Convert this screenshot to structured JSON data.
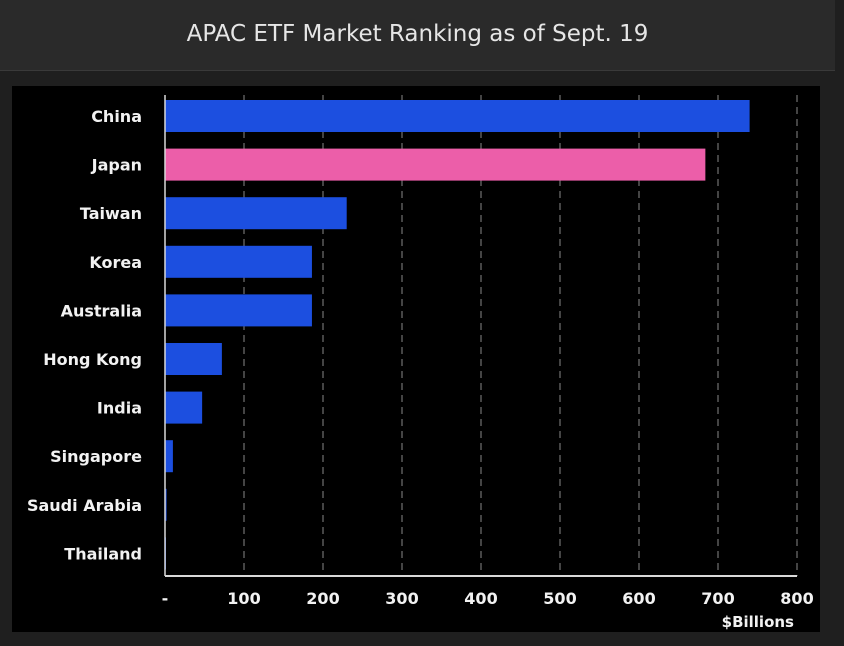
{
  "header": {
    "title": "APAC ETF Market Ranking as of Sept. 19"
  },
  "colors": {
    "default_bar": "#1c4fe0",
    "highlight_bar": "#ec5ea9",
    "gridline": "#5a5a5a",
    "background": "#000000"
  },
  "chart_data": {
    "type": "bar",
    "orientation": "horizontal",
    "title": "APAC ETF Market Ranking as of Sept. 19",
    "categories": [
      "China",
      "Japan",
      "Taiwan",
      "Korea",
      "Australia",
      "Hong Kong",
      "India",
      "Singapore",
      "Saudi Arabia",
      "Thailand"
    ],
    "values": [
      740,
      684,
      230,
      186,
      186,
      72,
      47,
      10,
      2,
      1
    ],
    "highlight": "Japan",
    "xlabel": "$Billions",
    "xlim": [
      0,
      800
    ],
    "xticks": [
      0,
      100,
      200,
      300,
      400,
      500,
      600,
      700,
      800
    ],
    "xtick_labels": [
      "-",
      "100",
      "200",
      "300",
      "400",
      "500",
      "600",
      "700",
      "800"
    ],
    "grid": "vertical dashed"
  }
}
